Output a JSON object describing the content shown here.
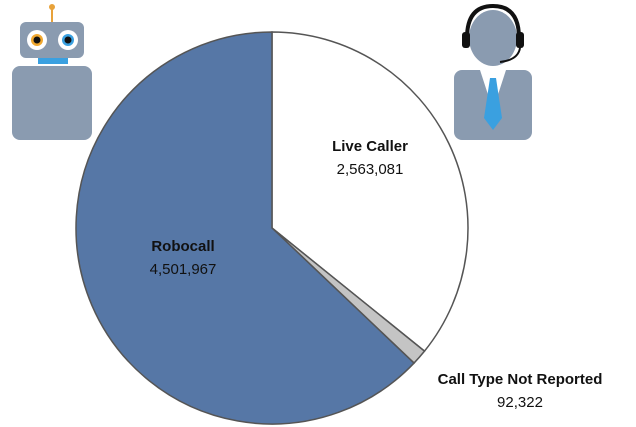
{
  "chart_data": {
    "type": "pie",
    "categories": [
      "Live Caller",
      "Call Type Not Reported",
      "Robocall"
    ],
    "values": [
      2563081,
      92322,
      4501967
    ],
    "value_labels": [
      "2,563,081",
      "92,322",
      "4,501,967"
    ],
    "colors": [
      "#ffffff",
      "#c4c4c4",
      "#5677a6"
    ]
  }
}
